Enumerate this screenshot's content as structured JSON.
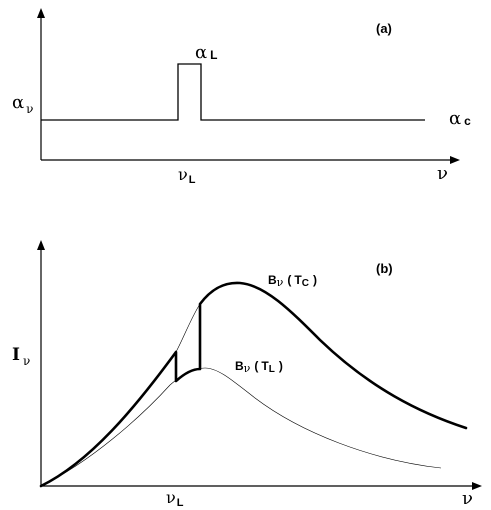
{
  "panel_a": {
    "tag": "(a)",
    "y_axis_symbol": "α",
    "y_axis_subscript": "ν",
    "x_axis_symbol": "ν",
    "tick_symbol": "ν",
    "tick_subscript": "L",
    "line_label_symbol": "α",
    "line_label_subscript": "L",
    "continuum_label_symbol": "α",
    "continuum_label_subscript": "c"
  },
  "panel_b": {
    "tag": "(b)",
    "y_axis_symbol": "I",
    "y_axis_subscript": "ν",
    "x_axis_symbol": "ν",
    "tick_symbol": "ν",
    "tick_subscript": "L",
    "upper_curve_label": {
      "B": "B",
      "nu": "ν",
      "open": "(",
      "T": "T",
      "sub": "C",
      "close": ")"
    },
    "lower_curve_label": {
      "B": "B",
      "nu": "ν",
      "open": "(",
      "T": "T",
      "sub": "L",
      "close": ")"
    }
  },
  "colors": {
    "ink": "#000000",
    "background": "#ffffff"
  }
}
